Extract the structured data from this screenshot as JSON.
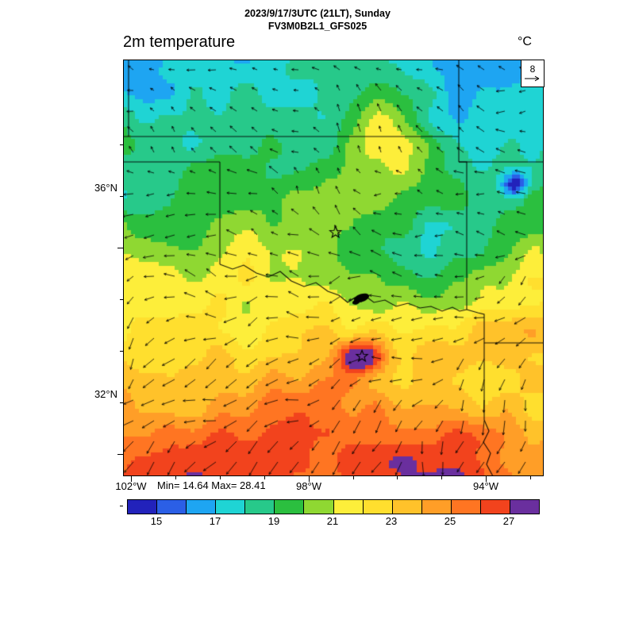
{
  "header": {
    "datetime": "2023/9/17/3UTC (21LT), Sunday",
    "model": "FV3M0B2L1_GFS025"
  },
  "plot": {
    "title": "2m temperature",
    "units": "°C",
    "wind_ref_value": "8",
    "stats": "Min= 14.64 Max= 28.41"
  },
  "axes": {
    "lat_labels": [
      {
        "text": "36°N"
      },
      {
        "text": "32°N"
      }
    ],
    "lon_labels": [
      {
        "text": "102°W"
      },
      {
        "text": "98°W"
      },
      {
        "text": "94°W"
      }
    ]
  },
  "colorbar": {
    "min_value": 14,
    "max_value": 28,
    "tick_labels": [
      "15",
      "17",
      "19",
      "21",
      "23",
      "25",
      "27"
    ],
    "segments": [
      {
        "from": 14,
        "to": 15,
        "color": "#2222bb"
      },
      {
        "from": 15,
        "to": 16,
        "color": "#2b5fe6"
      },
      {
        "from": 16,
        "to": 17,
        "color": "#1ea5f2"
      },
      {
        "from": 17,
        "to": 18,
        "color": "#1fd4d4"
      },
      {
        "from": 18,
        "to": 19,
        "color": "#27c98a"
      },
      {
        "from": 19,
        "to": 20,
        "color": "#2bbf3f"
      },
      {
        "from": 20,
        "to": 21,
        "color": "#8fd832"
      },
      {
        "from": 21,
        "to": 22,
        "color": "#fdee3a"
      },
      {
        "from": 22,
        "to": 23,
        "color": "#ffdf2e"
      },
      {
        "from": 23,
        "to": 24,
        "color": "#ffc22a"
      },
      {
        "from": 24,
        "to": 25,
        "color": "#ff9e27"
      },
      {
        "from": 25,
        "to": 26,
        "color": "#ff7522"
      },
      {
        "from": 26,
        "to": 27,
        "color": "#f2431d"
      },
      {
        "from": 27,
        "to": 28,
        "color": "#6a2f9e"
      }
    ]
  },
  "map": {
    "markers": [
      {
        "label": "station-star",
        "fx": 0.505,
        "fy": 0.415
      },
      {
        "label": "station-star",
        "fx": 0.568,
        "fy": 0.712
      }
    ],
    "lake": {
      "label": "lake-texoma",
      "fx": 0.567,
      "fy": 0.572
    }
  }
}
